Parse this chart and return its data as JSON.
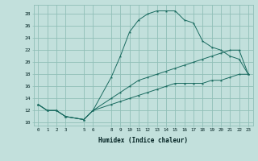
{
  "xlabel": "Humidex (Indice chaleur)",
  "background_color": "#c2e0dc",
  "grid_color": "#90bfb8",
  "line_color": "#1a6b60",
  "xlim": [
    -0.5,
    23.5
  ],
  "ylim": [
    9.5,
    29.5
  ],
  "xticks": [
    0,
    1,
    2,
    3,
    5,
    6,
    8,
    9,
    10,
    11,
    12,
    13,
    14,
    15,
    16,
    17,
    18,
    19,
    20,
    21,
    22,
    23
  ],
  "yticks": [
    10,
    12,
    14,
    16,
    18,
    20,
    22,
    24,
    26,
    28
  ],
  "line1_x": [
    0,
    1,
    2,
    3,
    5,
    6,
    8,
    9,
    10,
    11,
    12,
    13,
    14,
    15,
    16,
    17,
    18,
    19,
    20,
    21,
    22,
    23
  ],
  "line1_y": [
    13,
    12,
    12,
    11,
    10.5,
    12,
    17.5,
    21,
    25,
    27,
    28,
    28.5,
    28.5,
    28.5,
    27,
    26.5,
    23.5,
    22.5,
    22,
    21,
    20.5,
    18
  ],
  "line2_x": [
    0,
    1,
    2,
    3,
    5,
    6,
    8,
    9,
    10,
    11,
    12,
    13,
    14,
    15,
    16,
    17,
    18,
    19,
    20,
    21,
    22,
    23
  ],
  "line2_y": [
    13,
    12,
    12,
    11,
    10.5,
    12,
    14,
    15,
    16,
    17,
    17.5,
    18,
    18.5,
    19,
    19.5,
    20,
    20.5,
    21,
    21.5,
    22,
    22,
    18
  ],
  "line3_x": [
    0,
    1,
    2,
    3,
    5,
    6,
    8,
    9,
    10,
    11,
    12,
    13,
    14,
    15,
    16,
    17,
    18,
    19,
    20,
    21,
    22,
    23
  ],
  "line3_y": [
    13,
    12,
    12,
    11,
    10.5,
    12,
    13,
    13.5,
    14,
    14.5,
    15,
    15.5,
    16,
    16.5,
    16.5,
    16.5,
    16.5,
    17,
    17,
    17.5,
    18,
    18
  ]
}
